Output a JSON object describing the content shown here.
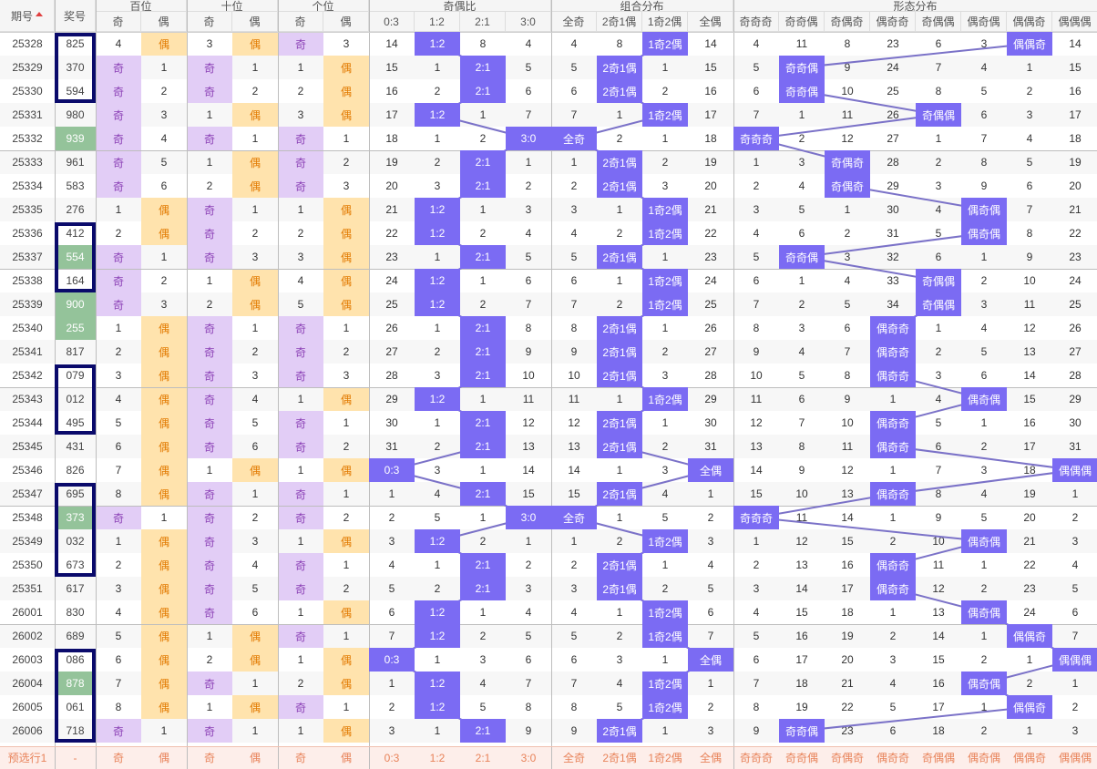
{
  "headers": {
    "period": "期号",
    "prize": "奖号",
    "groups": [
      "百位",
      "十位",
      "个位",
      "奇偶比",
      "组合分布",
      "形态分布"
    ],
    "odd_even": [
      "奇",
      "偶"
    ],
    "ratio": [
      "0:3",
      "1:2",
      "2:1",
      "3:0"
    ],
    "combo": [
      "全奇",
      "2奇1偶",
      "1奇2偶",
      "全偶"
    ],
    "shape": [
      "奇奇奇",
      "奇奇偶",
      "奇偶奇",
      "偶奇奇",
      "奇偶偶",
      "偶奇偶",
      "偶偶奇",
      "偶偶偶"
    ]
  },
  "rows": [
    {
      "p": "25328",
      "n": "825",
      "b": "4",
      "be": "偶",
      "s": "3",
      "se": "偶",
      "g": "奇",
      "ge": "3",
      "r": [
        "14",
        "1:2",
        "8",
        "4"
      ],
      "c": [
        "4",
        "8",
        "1奇2偶",
        "14"
      ],
      "f": [
        "4",
        "11",
        "8",
        "23",
        "6",
        "3",
        "偶偶奇",
        "14"
      ]
    },
    {
      "p": "25329",
      "n": "370",
      "b": "奇",
      "be": "1",
      "s": "奇",
      "se": "1",
      "g": "1",
      "ge": "偶",
      "r": [
        "15",
        "1",
        "2:1",
        "5"
      ],
      "c": [
        "5",
        "2奇1偶",
        "1",
        "15"
      ],
      "f": [
        "5",
        "奇奇偶",
        "9",
        "24",
        "7",
        "4",
        "1",
        "15"
      ]
    },
    {
      "p": "25330",
      "n": "594",
      "b": "奇",
      "be": "2",
      "s": "奇",
      "se": "2",
      "g": "2",
      "ge": "偶",
      "r": [
        "16",
        "2",
        "2:1",
        "6"
      ],
      "c": [
        "6",
        "2奇1偶",
        "2",
        "16"
      ],
      "f": [
        "6",
        "奇奇偶",
        "10",
        "25",
        "8",
        "5",
        "2",
        "16"
      ]
    },
    {
      "p": "25331",
      "n": "980",
      "b": "奇",
      "be": "3",
      "s": "1",
      "se": "偶",
      "g": "3",
      "ge": "偶",
      "r": [
        "17",
        "1:2",
        "1",
        "7"
      ],
      "c": [
        "7",
        "1",
        "1奇2偶",
        "17"
      ],
      "f": [
        "7",
        "1",
        "11",
        "26",
        "奇偶偶",
        "6",
        "3",
        "17"
      ]
    },
    {
      "p": "25332",
      "n": "939",
      "b": "奇",
      "be": "4",
      "s": "奇",
      "se": "1",
      "g": "奇",
      "ge": "1",
      "r": [
        "18",
        "1",
        "2",
        "3:0"
      ],
      "c": [
        "全奇",
        "2",
        "1",
        "18"
      ],
      "f": [
        "奇奇奇",
        "2",
        "12",
        "27",
        "1",
        "7",
        "4",
        "18"
      ]
    },
    {
      "p": "25333",
      "n": "961",
      "b": "奇",
      "be": "5",
      "s": "1",
      "se": "偶",
      "g": "奇",
      "ge": "2",
      "r": [
        "19",
        "2",
        "2:1",
        "1"
      ],
      "c": [
        "1",
        "2奇1偶",
        "2",
        "19"
      ],
      "f": [
        "1",
        "3",
        "奇偶奇",
        "28",
        "2",
        "8",
        "5",
        "19"
      ]
    },
    {
      "p": "25334",
      "n": "583",
      "b": "奇",
      "be": "6",
      "s": "2",
      "se": "偶",
      "g": "奇",
      "ge": "3",
      "r": [
        "20",
        "3",
        "2:1",
        "2"
      ],
      "c": [
        "2",
        "2奇1偶",
        "3",
        "20"
      ],
      "f": [
        "2",
        "4",
        "奇偶奇",
        "29",
        "3",
        "9",
        "6",
        "20"
      ]
    },
    {
      "p": "25335",
      "n": "276",
      "b": "1",
      "be": "偶",
      "s": "奇",
      "se": "1",
      "g": "1",
      "ge": "偶",
      "r": [
        "21",
        "1:2",
        "1",
        "3"
      ],
      "c": [
        "3",
        "1",
        "1奇2偶",
        "21"
      ],
      "f": [
        "3",
        "5",
        "1",
        "30",
        "4",
        "偶奇偶",
        "7",
        "21"
      ]
    },
    {
      "p": "25336",
      "n": "412",
      "b": "2",
      "be": "偶",
      "s": "奇",
      "se": "2",
      "g": "2",
      "ge": "偶",
      "r": [
        "22",
        "1:2",
        "2",
        "4"
      ],
      "c": [
        "4",
        "2",
        "1奇2偶",
        "22"
      ],
      "f": [
        "4",
        "6",
        "2",
        "31",
        "5",
        "偶奇偶",
        "8",
        "22"
      ]
    },
    {
      "p": "25337",
      "n": "554",
      "b": "奇",
      "be": "1",
      "s": "奇",
      "se": "3",
      "g": "3",
      "ge": "偶",
      "r": [
        "23",
        "1",
        "2:1",
        "5"
      ],
      "c": [
        "5",
        "2奇1偶",
        "1",
        "23"
      ],
      "f": [
        "5",
        "奇奇偶",
        "3",
        "32",
        "6",
        "1",
        "9",
        "23"
      ]
    },
    {
      "p": "25338",
      "n": "164",
      "b": "奇",
      "be": "2",
      "s": "1",
      "se": "偶",
      "g": "4",
      "ge": "偶",
      "r": [
        "24",
        "1:2",
        "1",
        "6"
      ],
      "c": [
        "6",
        "1",
        "1奇2偶",
        "24"
      ],
      "f": [
        "6",
        "1",
        "4",
        "33",
        "奇偶偶",
        "2",
        "10",
        "24"
      ]
    },
    {
      "p": "25339",
      "n": "900",
      "b": "奇",
      "be": "3",
      "s": "2",
      "se": "偶",
      "g": "5",
      "ge": "偶",
      "r": [
        "25",
        "1:2",
        "2",
        "7"
      ],
      "c": [
        "7",
        "2",
        "1奇2偶",
        "25"
      ],
      "f": [
        "7",
        "2",
        "5",
        "34",
        "奇偶偶",
        "3",
        "11",
        "25"
      ]
    },
    {
      "p": "25340",
      "n": "255",
      "b": "1",
      "be": "偶",
      "s": "奇",
      "se": "1",
      "g": "奇",
      "ge": "1",
      "r": [
        "26",
        "1",
        "2:1",
        "8"
      ],
      "c": [
        "8",
        "2奇1偶",
        "1",
        "26"
      ],
      "f": [
        "8",
        "3",
        "6",
        "偶奇奇",
        "1",
        "4",
        "12",
        "26"
      ]
    },
    {
      "p": "25341",
      "n": "817",
      "b": "2",
      "be": "偶",
      "s": "奇",
      "se": "2",
      "g": "奇",
      "ge": "2",
      "r": [
        "27",
        "2",
        "2:1",
        "9"
      ],
      "c": [
        "9",
        "2奇1偶",
        "2",
        "27"
      ],
      "f": [
        "9",
        "4",
        "7",
        "偶奇奇",
        "2",
        "5",
        "13",
        "27"
      ]
    },
    {
      "p": "25342",
      "n": "079",
      "b": "3",
      "be": "偶",
      "s": "奇",
      "se": "3",
      "g": "奇",
      "ge": "3",
      "r": [
        "28",
        "3",
        "2:1",
        "10"
      ],
      "c": [
        "10",
        "2奇1偶",
        "3",
        "28"
      ],
      "f": [
        "10",
        "5",
        "8",
        "偶奇奇",
        "3",
        "6",
        "14",
        "28"
      ]
    },
    {
      "p": "25343",
      "n": "012",
      "b": "4",
      "be": "偶",
      "s": "奇",
      "se": "4",
      "g": "1",
      "ge": "偶",
      "r": [
        "29",
        "1:2",
        "1",
        "11"
      ],
      "c": [
        "11",
        "1",
        "1奇2偶",
        "29"
      ],
      "f": [
        "11",
        "6",
        "9",
        "1",
        "4",
        "偶奇偶",
        "15",
        "29"
      ]
    },
    {
      "p": "25344",
      "n": "495",
      "b": "5",
      "be": "偶",
      "s": "奇",
      "se": "5",
      "g": "奇",
      "ge": "1",
      "r": [
        "30",
        "1",
        "2:1",
        "12"
      ],
      "c": [
        "12",
        "2奇1偶",
        "1",
        "30"
      ],
      "f": [
        "12",
        "7",
        "10",
        "偶奇奇",
        "5",
        "1",
        "16",
        "30"
      ]
    },
    {
      "p": "25345",
      "n": "431",
      "b": "6",
      "be": "偶",
      "s": "奇",
      "se": "6",
      "g": "奇",
      "ge": "2",
      "r": [
        "31",
        "2",
        "2:1",
        "13"
      ],
      "c": [
        "13",
        "2奇1偶",
        "2",
        "31"
      ],
      "f": [
        "13",
        "8",
        "11",
        "偶奇奇",
        "6",
        "2",
        "17",
        "31"
      ]
    },
    {
      "p": "25346",
      "n": "826",
      "b": "7",
      "be": "偶",
      "s": "1",
      "se": "偶",
      "g": "1",
      "ge": "偶",
      "r": [
        "0:3",
        "3",
        "1",
        "14"
      ],
      "c": [
        "14",
        "1",
        "3",
        "全偶"
      ],
      "f": [
        "14",
        "9",
        "12",
        "1",
        "7",
        "3",
        "18",
        "偶偶偶"
      ]
    },
    {
      "p": "25347",
      "n": "695",
      "b": "8",
      "be": "偶",
      "s": "奇",
      "se": "1",
      "g": "奇",
      "ge": "1",
      "r": [
        "1",
        "4",
        "2:1",
        "15"
      ],
      "c": [
        "15",
        "2奇1偶",
        "4",
        "1"
      ],
      "f": [
        "15",
        "10",
        "13",
        "偶奇奇",
        "8",
        "4",
        "19",
        "1"
      ]
    },
    {
      "p": "25348",
      "n": "373",
      "b": "奇",
      "be": "1",
      "s": "奇",
      "se": "2",
      "g": "奇",
      "ge": "2",
      "r": [
        "2",
        "5",
        "1",
        "3:0"
      ],
      "c": [
        "全奇",
        "1",
        "5",
        "2"
      ],
      "f": [
        "奇奇奇",
        "11",
        "14",
        "1",
        "9",
        "5",
        "20",
        "2"
      ]
    },
    {
      "p": "25349",
      "n": "032",
      "b": "1",
      "be": "偶",
      "s": "奇",
      "se": "3",
      "g": "1",
      "ge": "偶",
      "r": [
        "3",
        "1:2",
        "2",
        "1"
      ],
      "c": [
        "1",
        "2",
        "1奇2偶",
        "3"
      ],
      "f": [
        "1",
        "12",
        "15",
        "2",
        "10",
        "偶奇偶",
        "21",
        "3"
      ]
    },
    {
      "p": "25350",
      "n": "673",
      "b": "2",
      "be": "偶",
      "s": "奇",
      "se": "4",
      "g": "奇",
      "ge": "1",
      "r": [
        "4",
        "1",
        "2:1",
        "2"
      ],
      "c": [
        "2",
        "2奇1偶",
        "1",
        "4"
      ],
      "f": [
        "2",
        "13",
        "16",
        "偶奇奇",
        "11",
        "1",
        "22",
        "4"
      ]
    },
    {
      "p": "25351",
      "n": "617",
      "b": "3",
      "be": "偶",
      "s": "奇",
      "se": "5",
      "g": "奇",
      "ge": "2",
      "r": [
        "5",
        "2",
        "2:1",
        "3"
      ],
      "c": [
        "3",
        "2奇1偶",
        "2",
        "5"
      ],
      "f": [
        "3",
        "14",
        "17",
        "偶奇奇",
        "12",
        "2",
        "23",
        "5"
      ]
    },
    {
      "p": "26001",
      "n": "830",
      "b": "4",
      "be": "偶",
      "s": "奇",
      "se": "6",
      "g": "1",
      "ge": "偶",
      "r": [
        "6",
        "1:2",
        "1",
        "4"
      ],
      "c": [
        "4",
        "1",
        "1奇2偶",
        "6"
      ],
      "f": [
        "4",
        "15",
        "18",
        "1",
        "13",
        "偶奇偶",
        "24",
        "6"
      ]
    },
    {
      "p": "26002",
      "n": "689",
      "b": "5",
      "be": "偶",
      "s": "1",
      "se": "偶",
      "g": "奇",
      "ge": "1",
      "r": [
        "7",
        "1:2",
        "2",
        "5"
      ],
      "c": [
        "5",
        "2",
        "1奇2偶",
        "7"
      ],
      "f": [
        "5",
        "16",
        "19",
        "2",
        "14",
        "1",
        "偶偶奇",
        "7"
      ]
    },
    {
      "p": "26003",
      "n": "086",
      "b": "6",
      "be": "偶",
      "s": "2",
      "se": "偶",
      "g": "1",
      "ge": "偶",
      "r": [
        "0:3",
        "1",
        "3",
        "6"
      ],
      "c": [
        "6",
        "3",
        "1",
        "全偶"
      ],
      "f": [
        "6",
        "17",
        "20",
        "3",
        "15",
        "2",
        "1",
        "偶偶偶"
      ]
    },
    {
      "p": "26004",
      "n": "878",
      "b": "7",
      "be": "偶",
      "s": "奇",
      "se": "1",
      "g": "2",
      "ge": "偶",
      "r": [
        "1",
        "1:2",
        "4",
        "7"
      ],
      "c": [
        "7",
        "4",
        "1奇2偶",
        "1"
      ],
      "f": [
        "7",
        "18",
        "21",
        "4",
        "16",
        "偶奇偶",
        "2",
        "1"
      ]
    },
    {
      "p": "26005",
      "n": "061",
      "b": "8",
      "be": "偶",
      "s": "1",
      "se": "偶",
      "g": "奇",
      "ge": "1",
      "r": [
        "2",
        "1:2",
        "5",
        "8"
      ],
      "c": [
        "8",
        "5",
        "1奇2偶",
        "2"
      ],
      "f": [
        "8",
        "19",
        "22",
        "5",
        "17",
        "1",
        "偶偶奇",
        "2"
      ]
    },
    {
      "p": "26006",
      "n": "718",
      "b": "奇",
      "be": "1",
      "s": "奇",
      "se": "1",
      "g": "1",
      "ge": "偶",
      "r": [
        "3",
        "1",
        "2:1",
        "9"
      ],
      "c": [
        "9",
        "2奇1偶",
        "1",
        "3"
      ],
      "f": [
        "9",
        "奇奇偶",
        "23",
        "6",
        "18",
        "2",
        "1",
        "3"
      ]
    }
  ],
  "footer": {
    "label": "预选行1",
    "prize": "-"
  },
  "colors": {
    "odd_bg": "#e2cdf6",
    "even_bg": "#ffe3ad",
    "chip": "#7b6bf3",
    "highlight": "#94c39a",
    "frame": "#0a0a6b",
    "line": "#7b72c8"
  }
}
